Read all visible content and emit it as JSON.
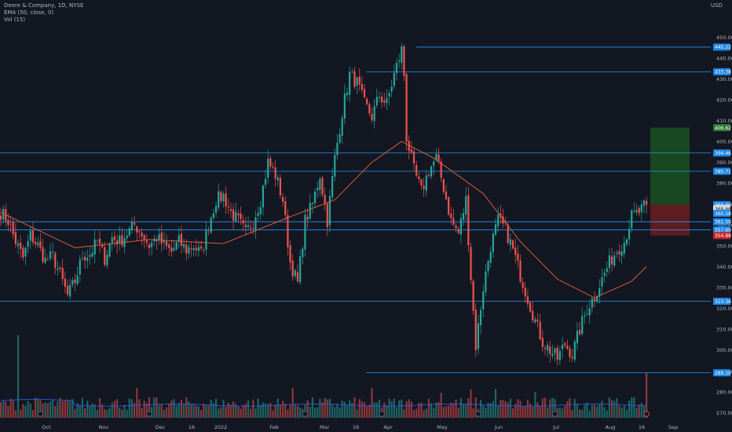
{
  "legend": {
    "line1": "Deere & Company, 1D, NYSE",
    "line2": "EMA (50, close, 0)",
    "line3": "Vol (15)"
  },
  "currency": "USD",
  "colors": {
    "background": "#131722",
    "up": "#26a69a",
    "down": "#ef5350",
    "ema": "#e8643c",
    "hline": "#2196f3",
    "tag": "#1e88e5",
    "target_zone": "#1b5e20",
    "stop_zone": "#7a1f22",
    "axis_text": "#b2b5be"
  },
  "chart_data": {
    "type": "candlestick",
    "ylim": [
      266,
      458
    ],
    "y_ticks": [
      270,
      280,
      290,
      300,
      310,
      320,
      330,
      340,
      350,
      360,
      370,
      380,
      390,
      400,
      410,
      420,
      430,
      440,
      450
    ],
    "x_labels": [
      "Oct",
      "Nov",
      "Dec",
      "16",
      "2022",
      "Feb",
      "Mar",
      "16",
      "Apr",
      "May",
      "Jun",
      "Jul",
      "Aug",
      "16",
      "Sep"
    ],
    "levels": [
      {
        "price": 445.22,
        "label": "445.22"
      },
      {
        "price": 433.38,
        "label": "433.38"
      },
      {
        "price": 394.46,
        "label": "394.46"
      },
      {
        "price": 385.71,
        "label": "385.71"
      },
      {
        "price": 361.5,
        "label": "361.50"
      },
      {
        "price": 357.6,
        "label": "357.60"
      },
      {
        "price": 323.36,
        "label": "323.36"
      },
      {
        "price": 289.1,
        "label": "289.10"
      }
    ],
    "price_tags": [
      {
        "price": 406.62,
        "label": "406.62",
        "kind": "target"
      },
      {
        "price": 369.66,
        "label": "369.66",
        "kind": "entry"
      },
      {
        "price": 367.75,
        "label": "369.66",
        "kind": "last"
      },
      {
        "price": 365.58,
        "label": "365.58",
        "kind": "level"
      },
      {
        "price": 354.88,
        "label": "354.88",
        "kind": "stop"
      }
    ],
    "position": {
      "entry": 369.66,
      "target": 406.62,
      "stop": 354.88
    },
    "anchors": [
      [
        0,
        366
      ],
      [
        3,
        362
      ],
      [
        6,
        352
      ],
      [
        9,
        344
      ],
      [
        12,
        355
      ],
      [
        15,
        350
      ],
      [
        18,
        343
      ],
      [
        21,
        345
      ],
      [
        24,
        336
      ],
      [
        27,
        326
      ],
      [
        30,
        333
      ],
      [
        33,
        345
      ],
      [
        36,
        346
      ],
      [
        39,
        352
      ],
      [
        42,
        344
      ],
      [
        45,
        354
      ],
      [
        48,
        352
      ],
      [
        51,
        356
      ],
      [
        54,
        360
      ],
      [
        57,
        356
      ],
      [
        60,
        350
      ],
      [
        63,
        354
      ],
      [
        66,
        350
      ],
      [
        69,
        347
      ],
      [
        72,
        352
      ],
      [
        75,
        348
      ],
      [
        78,
        350
      ],
      [
        81,
        346
      ],
      [
        84,
        360
      ],
      [
        87,
        372
      ],
      [
        90,
        374
      ],
      [
        93,
        366
      ],
      [
        96,
        362
      ],
      [
        99,
        356
      ],
      [
        102,
        362
      ],
      [
        105,
        372
      ],
      [
        108,
        390
      ],
      [
        111,
        384
      ],
      [
        114,
        372
      ],
      [
        117,
        342
      ],
      [
        120,
        332
      ],
      [
        123,
        362
      ],
      [
        126,
        370
      ],
      [
        129,
        384
      ],
      [
        132,
        362
      ],
      [
        135,
        392
      ],
      [
        138,
        414
      ],
      [
        141,
        432
      ],
      [
        144,
        428
      ],
      [
        147,
        418
      ],
      [
        150,
        412
      ],
      [
        153,
        422
      ],
      [
        156,
        418
      ],
      [
        159,
        432
      ],
      [
        162,
        444
      ],
      [
        163,
        432
      ],
      [
        164,
        402
      ],
      [
        167,
        386
      ],
      [
        170,
        376
      ],
      [
        173,
        386
      ],
      [
        176,
        392
      ],
      [
        179,
        378
      ],
      [
        182,
        362
      ],
      [
        185,
        356
      ],
      [
        188,
        372
      ],
      [
        190,
        335
      ],
      [
        192,
        302
      ],
      [
        195,
        330
      ],
      [
        198,
        350
      ],
      [
        201,
        362
      ],
      [
        204,
        358
      ],
      [
        207,
        348
      ],
      [
        210,
        336
      ],
      [
        213,
        325
      ],
      [
        216,
        314
      ],
      [
        219,
        304
      ],
      [
        222,
        300
      ],
      [
        225,
        296
      ],
      [
        228,
        303
      ],
      [
        231,
        298
      ],
      [
        234,
        310
      ],
      [
        237,
        320
      ],
      [
        240,
        326
      ],
      [
        243,
        334
      ],
      [
        246,
        342
      ],
      [
        249,
        348
      ],
      [
        252,
        352
      ],
      [
        255,
        364
      ],
      [
        258,
        366
      ],
      [
        261,
        369.66
      ]
    ],
    "ema": [
      [
        0,
        366
      ],
      [
        30,
        349
      ],
      [
        60,
        353
      ],
      [
        90,
        351
      ],
      [
        115,
        363
      ],
      [
        135,
        372
      ],
      [
        150,
        390
      ],
      [
        162,
        400
      ],
      [
        175,
        392
      ],
      [
        195,
        375
      ],
      [
        210,
        352
      ],
      [
        225,
        334
      ],
      [
        240,
        325
      ],
      [
        255,
        333
      ],
      [
        261,
        340
      ]
    ],
    "volume_scale": {
      "max": 24,
      "avg_base": 4
    }
  }
}
